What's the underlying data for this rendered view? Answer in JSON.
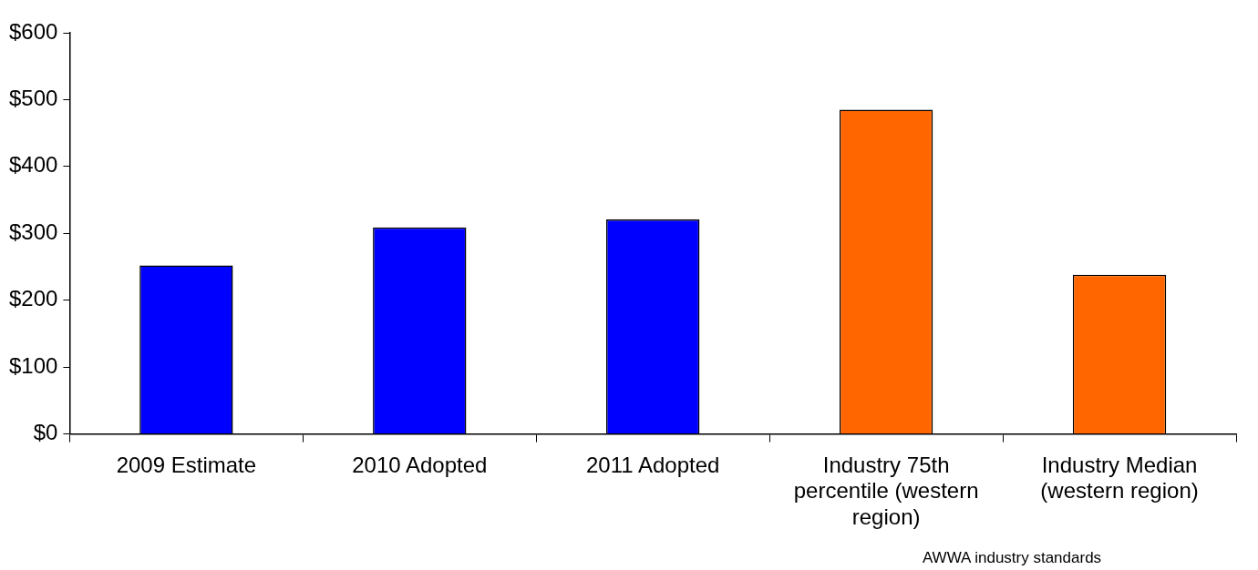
{
  "chart_data": {
    "type": "bar",
    "categories": [
      "2009 Estimate",
      "2010 Adopted",
      "2011 Adopted",
      "Industry 75th percentile (western region)",
      "Industry Median (western region)"
    ],
    "values": [
      252,
      309,
      321,
      485,
      238
    ],
    "colors": [
      "#0000ff",
      "#0000ff",
      "#0000ff",
      "#ff6600",
      "#ff6600"
    ],
    "ylim": [
      0,
      600
    ],
    "yticks": [
      {
        "value": 0,
        "label": "$0"
      },
      {
        "value": 100,
        "label": "$100"
      },
      {
        "value": 200,
        "label": "$200"
      },
      {
        "value": 300,
        "label": "$300"
      },
      {
        "value": 400,
        "label": "$400"
      },
      {
        "value": 500,
        "label": "$500"
      },
      {
        "value": 600,
        "label": "$600"
      }
    ],
    "grid": false,
    "legend": false,
    "annotations": [
      "AWWA industry standards"
    ]
  }
}
